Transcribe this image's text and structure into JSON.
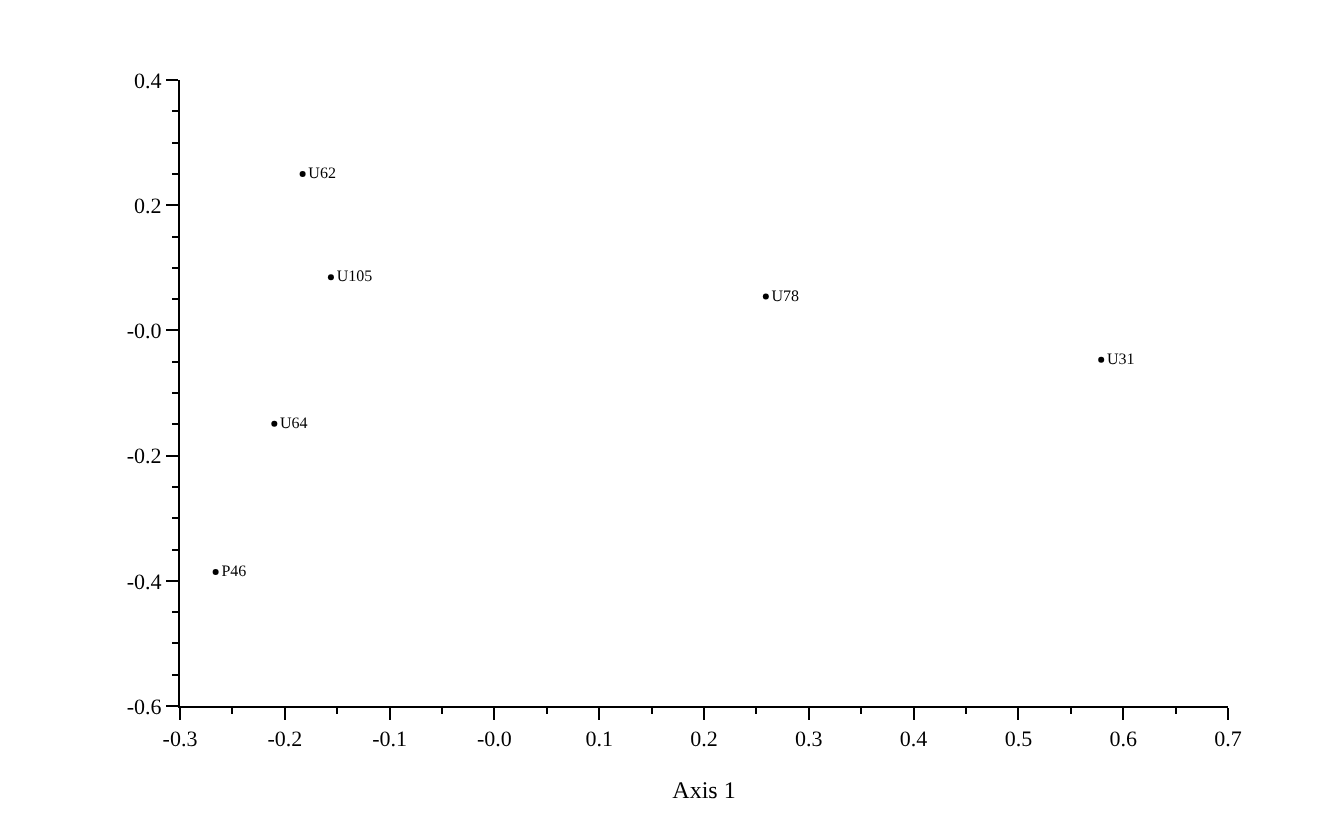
{
  "chart_data": {
    "type": "scatter",
    "xlabel": "Axis 1",
    "x": [
      -0.183,
      -0.156,
      0.259,
      0.579,
      -0.21,
      -0.266
    ],
    "values": [
      0.25,
      0.085,
      0.054,
      -0.047,
      -0.149,
      -0.386
    ],
    "value_labels": [
      "U62",
      "U105",
      "U78",
      "U31",
      "U64",
      "P46"
    ],
    "color": "#000000",
    "marker": "circle",
    "xlim": [
      -0.3,
      0.7
    ],
    "xticks": [
      -0.3,
      -0.2,
      -0.1,
      {
        "value": 0,
        "label": "-0.0"
      },
      0.1,
      0.2,
      0.3,
      0.4,
      0.5,
      0.6,
      0.7
    ],
    "ylim": [
      -0.6,
      0.4
    ],
    "yticks": [
      -0.6,
      -0.4,
      -0.2,
      {
        "value": 0,
        "label": "-0.0"
      },
      0.2,
      0.4
    ]
  }
}
